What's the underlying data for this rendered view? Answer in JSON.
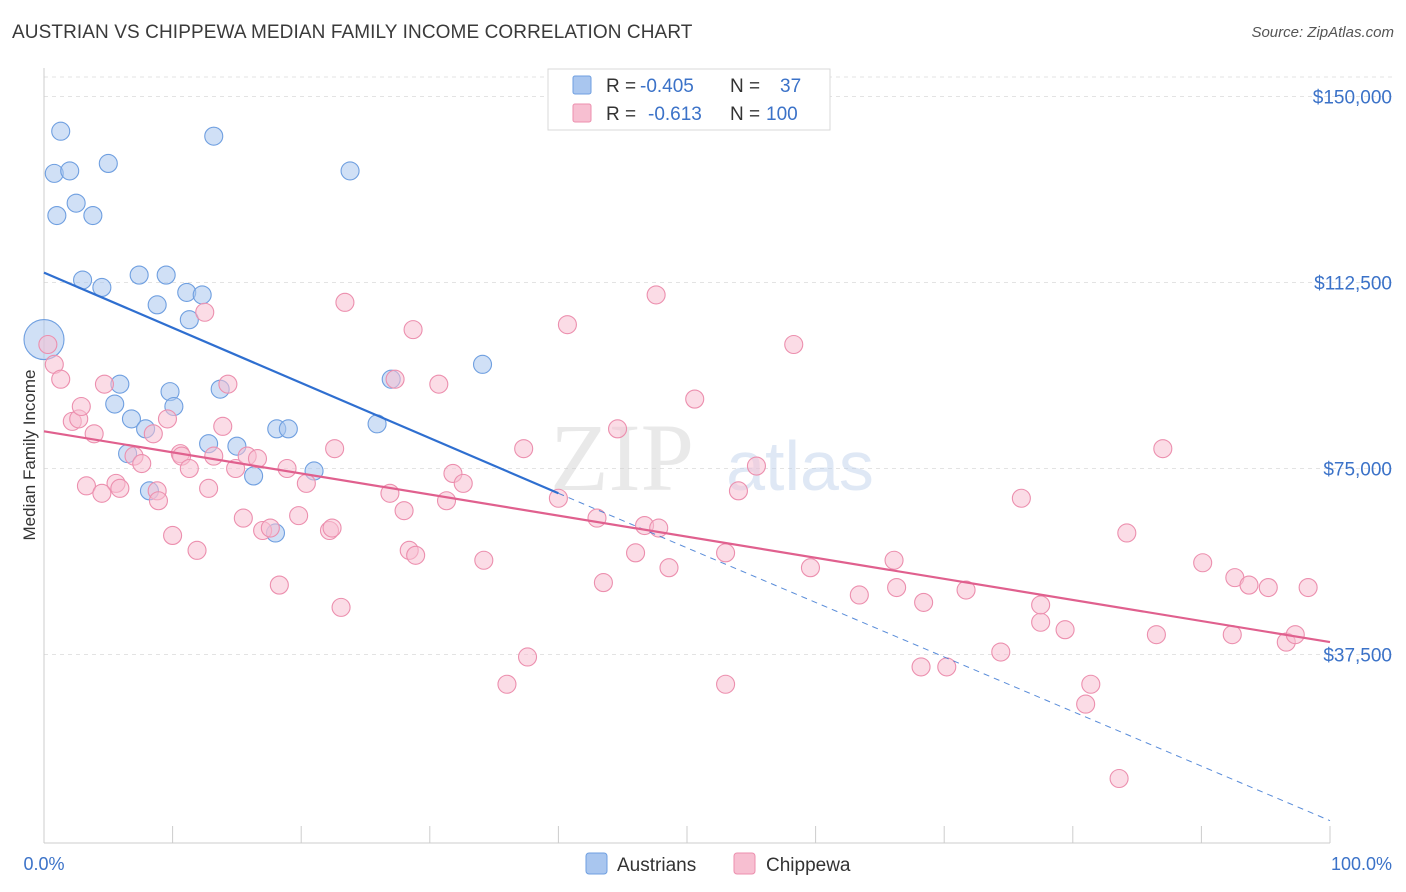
{
  "title": "AUSTRIAN VS CHIPPEWA MEDIAN FAMILY INCOME CORRELATION CHART",
  "source": "Source: ZipAtlas.com",
  "watermark": {
    "zip": "ZIP",
    "atlas": "atlas"
  },
  "chart_data": {
    "type": "scatter",
    "xlabel": "",
    "ylabel": "Median Family Income",
    "xlim": [
      0,
      100
    ],
    "ylim": [
      0,
      156000
    ],
    "x_tick_labels": [
      "0.0%",
      "100.0%"
    ],
    "y_ticks": [
      37500,
      75000,
      112500,
      150000
    ],
    "y_tick_labels": [
      "$37,500",
      "$75,000",
      "$112,500",
      "$150,000"
    ],
    "grid": true,
    "legend_stats": [
      {
        "r_label": "R =",
        "r_value": "-0.405",
        "n_label": "N =",
        "n_value": "37"
      },
      {
        "r_label": "R =",
        "r_value": "-0.613",
        "n_label": "N =",
        "n_value": "100"
      }
    ],
    "series": [
      {
        "name": "Austrians",
        "color": "#6f9fe0",
        "fill": "#a9c6ef",
        "line_color": "#2f6fd0",
        "trend": {
          "x0": 0,
          "y0": 114500,
          "x1": 40,
          "y1": 70000,
          "dash_x1": 100,
          "dash_y1": 4000
        },
        "points": [
          [
            1.3,
            143000
          ],
          [
            0.8,
            134500
          ],
          [
            2.0,
            135000
          ],
          [
            1.0,
            126000
          ],
          [
            2.5,
            128500
          ],
          [
            3.8,
            126000
          ],
          [
            5.0,
            136500
          ],
          [
            13.2,
            142000
          ],
          [
            23.8,
            135000
          ],
          [
            3.0,
            113000
          ],
          [
            4.5,
            111500
          ],
          [
            7.4,
            114000
          ],
          [
            9.5,
            114000
          ],
          [
            8.8,
            108000
          ],
          [
            11.1,
            110500
          ],
          [
            12.3,
            110000
          ],
          [
            11.3,
            105000
          ],
          [
            0.0,
            101000
          ],
          [
            5.9,
            92000
          ],
          [
            9.8,
            90500
          ],
          [
            13.7,
            91000
          ],
          [
            27.0,
            93000
          ],
          [
            34.1,
            96000
          ],
          [
            5.5,
            88000
          ],
          [
            10.1,
            87500
          ],
          [
            6.8,
            85000
          ],
          [
            7.9,
            83000
          ],
          [
            12.8,
            80000
          ],
          [
            15.0,
            79500
          ],
          [
            18.1,
            83000
          ],
          [
            19.0,
            83000
          ],
          [
            6.5,
            78000
          ],
          [
            8.2,
            70500
          ],
          [
            16.3,
            73500
          ],
          [
            21.0,
            74500
          ],
          [
            25.9,
            84000
          ],
          [
            18.0,
            62000
          ]
        ]
      },
      {
        "name": "Chippewa",
        "color": "#ec8fae",
        "fill": "#f7bfd1",
        "line_color": "#e0608e",
        "trend": {
          "x0": 0,
          "y0": 82500,
          "x1": 100,
          "y1": 40000
        },
        "points": [
          [
            0.3,
            100000
          ],
          [
            0.8,
            96000
          ],
          [
            1.3,
            93000
          ],
          [
            2.2,
            84500
          ],
          [
            2.7,
            85000
          ],
          [
            2.9,
            87500
          ],
          [
            3.9,
            82000
          ],
          [
            4.7,
            92000
          ],
          [
            5.6,
            72000
          ],
          [
            3.3,
            71500
          ],
          [
            4.5,
            70000
          ],
          [
            5.9,
            71000
          ],
          [
            7.0,
            77500
          ],
          [
            7.6,
            76000
          ],
          [
            8.5,
            82000
          ],
          [
            8.8,
            70500
          ],
          [
            8.9,
            68500
          ],
          [
            9.6,
            85000
          ],
          [
            10.6,
            78000
          ],
          [
            10.7,
            77500
          ],
          [
            10.0,
            61500
          ],
          [
            11.3,
            75000
          ],
          [
            11.9,
            58500
          ],
          [
            12.8,
            71000
          ],
          [
            13.2,
            77500
          ],
          [
            13.9,
            83500
          ],
          [
            14.3,
            92000
          ],
          [
            14.9,
            75000
          ],
          [
            15.5,
            65000
          ],
          [
            15.8,
            77500
          ],
          [
            12.5,
            106500
          ],
          [
            17.0,
            62500
          ],
          [
            16.6,
            77000
          ],
          [
            17.6,
            63000
          ],
          [
            18.3,
            51500
          ],
          [
            18.9,
            75000
          ],
          [
            19.8,
            65500
          ],
          [
            20.4,
            72000
          ],
          [
            22.2,
            62500
          ],
          [
            22.4,
            63000
          ],
          [
            23.1,
            47000
          ],
          [
            23.4,
            108500
          ],
          [
            22.6,
            79000
          ],
          [
            26.9,
            70000
          ],
          [
            27.3,
            93000
          ],
          [
            28.0,
            66500
          ],
          [
            28.4,
            58500
          ],
          [
            28.9,
            57500
          ],
          [
            28.7,
            103000
          ],
          [
            30.7,
            92000
          ],
          [
            31.3,
            68500
          ],
          [
            31.8,
            74000
          ],
          [
            32.6,
            72000
          ],
          [
            34.2,
            56500
          ],
          [
            36.0,
            31500
          ],
          [
            37.3,
            79000
          ],
          [
            37.6,
            37000
          ],
          [
            40.0,
            69000
          ],
          [
            40.7,
            104000
          ],
          [
            43.0,
            65000
          ],
          [
            43.5,
            52000
          ],
          [
            44.6,
            83000
          ],
          [
            46.0,
            58000
          ],
          [
            46.7,
            63500
          ],
          [
            47.8,
            63000
          ],
          [
            47.6,
            110000
          ],
          [
            48.6,
            55000
          ],
          [
            50.6,
            89000
          ],
          [
            53.0,
            58000
          ],
          [
            53.0,
            31500
          ],
          [
            54.0,
            70500
          ],
          [
            55.4,
            75500
          ],
          [
            58.3,
            100000
          ],
          [
            59.6,
            55000
          ],
          [
            63.4,
            49500
          ],
          [
            66.1,
            56500
          ],
          [
            66.3,
            51000
          ],
          [
            68.4,
            48000
          ],
          [
            68.2,
            35000
          ],
          [
            70.2,
            35000
          ],
          [
            71.7,
            50500
          ],
          [
            74.4,
            38000
          ],
          [
            76.0,
            69000
          ],
          [
            77.5,
            44000
          ],
          [
            77.5,
            47500
          ],
          [
            79.4,
            42500
          ],
          [
            81.4,
            31500
          ],
          [
            81.0,
            27500
          ],
          [
            83.6,
            12500
          ],
          [
            84.2,
            62000
          ],
          [
            86.5,
            41500
          ],
          [
            87.0,
            79000
          ],
          [
            90.1,
            56000
          ],
          [
            92.6,
            53000
          ],
          [
            92.4,
            41500
          ],
          [
            93.7,
            51500
          ],
          [
            95.2,
            51000
          ],
          [
            96.6,
            40000
          ],
          [
            97.3,
            41500
          ],
          [
            98.3,
            51000
          ]
        ]
      }
    ]
  }
}
